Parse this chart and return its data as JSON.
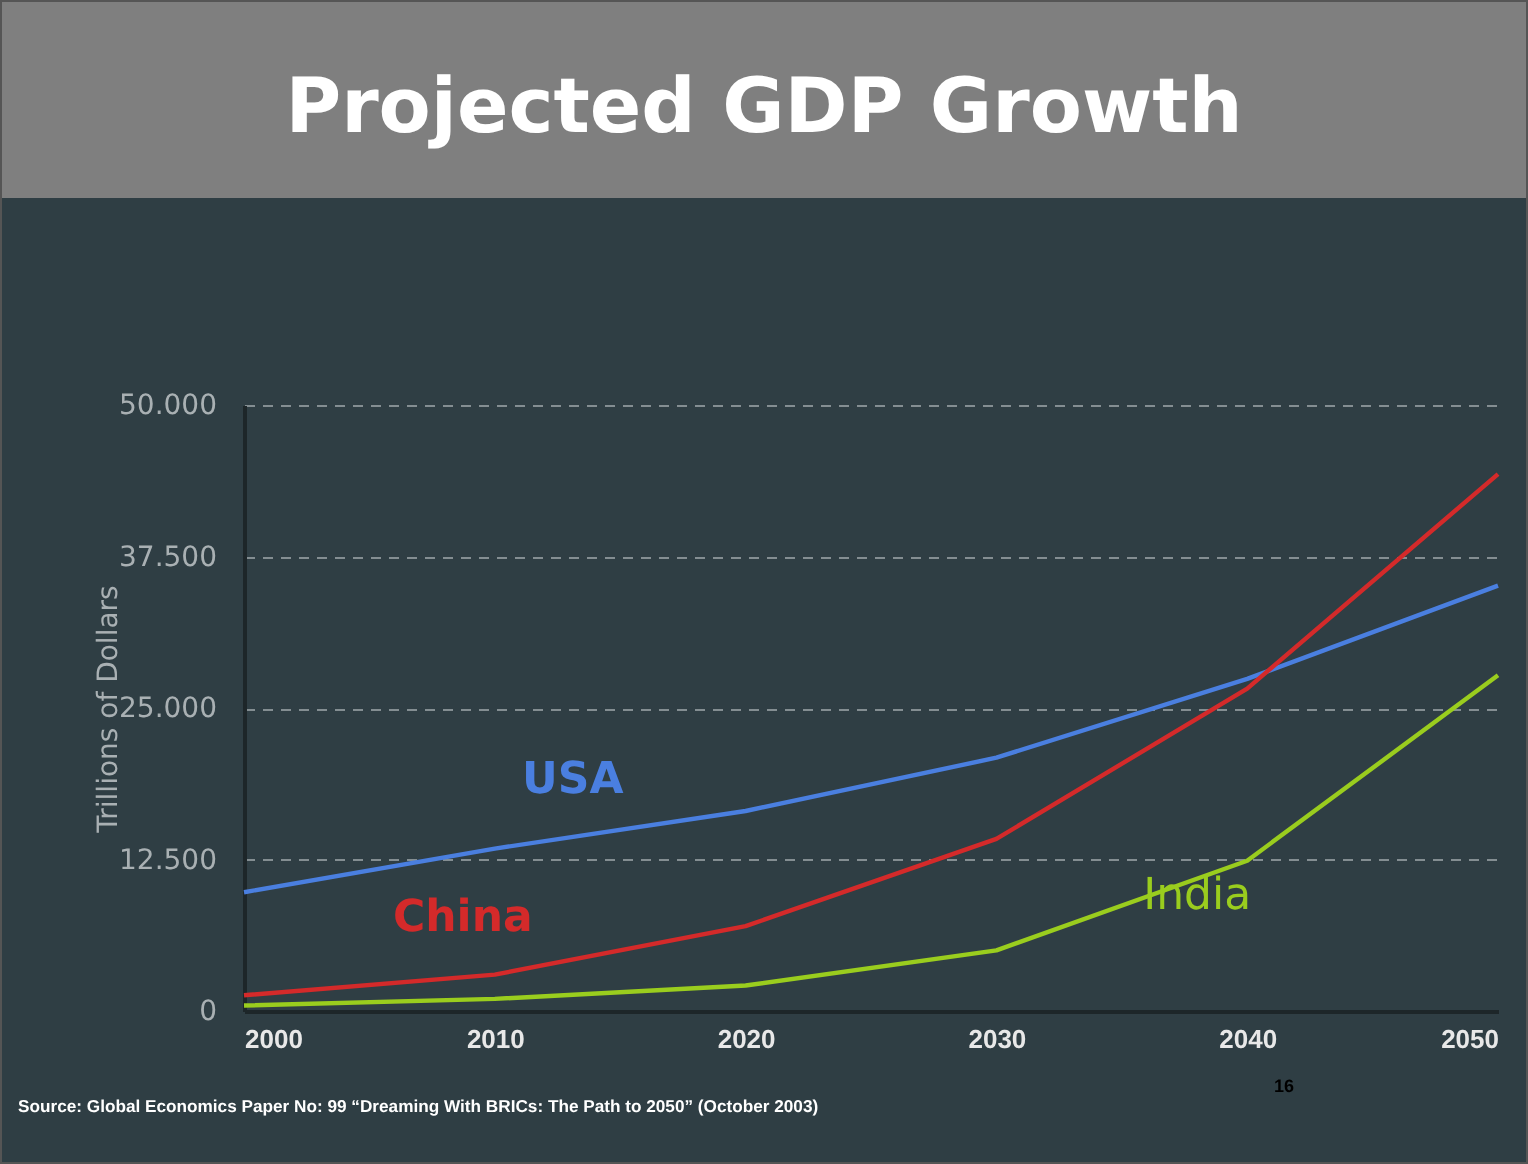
{
  "chart_data": {
    "type": "line",
    "title": "Projected GDP Growth",
    "ylabel": "Trillions of Dollars",
    "x": [
      2000,
      2010,
      2020,
      2030,
      2040,
      2050
    ],
    "xlim": [
      2000,
      2050
    ],
    "xticks": [
      2000,
      2010,
      2020,
      2030,
      2040,
      2050
    ],
    "ylim": [
      0,
      50000
    ],
    "yticks": [
      0,
      {
        "value": 12500,
        "label": "12.500"
      },
      {
        "value": 25000,
        "label": "25.000"
      },
      {
        "value": 37500,
        "label": "37.500"
      },
      {
        "value": 50000,
        "label": "50.000"
      }
    ],
    "grid": "y",
    "legend": false,
    "marker": "none",
    "line_style": "solid",
    "series": [
      {
        "name": "USA",
        "color": "#4a7fe0",
        "values": [
          9800,
          13400,
          16500,
          20900,
          27400,
          35100
        ]
      },
      {
        "name": "China",
        "color": "#d42a2a",
        "values": [
          1300,
          3000,
          7000,
          14200,
          26600,
          44300
        ]
      },
      {
        "name": "India",
        "color": "#9acd1e",
        "values": [
          450,
          1000,
          2100,
          5000,
          12400,
          27700
        ]
      }
    ],
    "annotations": [
      "Source: Global Economics Paper No: 99 “Dreaming With BRICs: The Path to 2050” (October 2003)",
      "16"
    ]
  }
}
